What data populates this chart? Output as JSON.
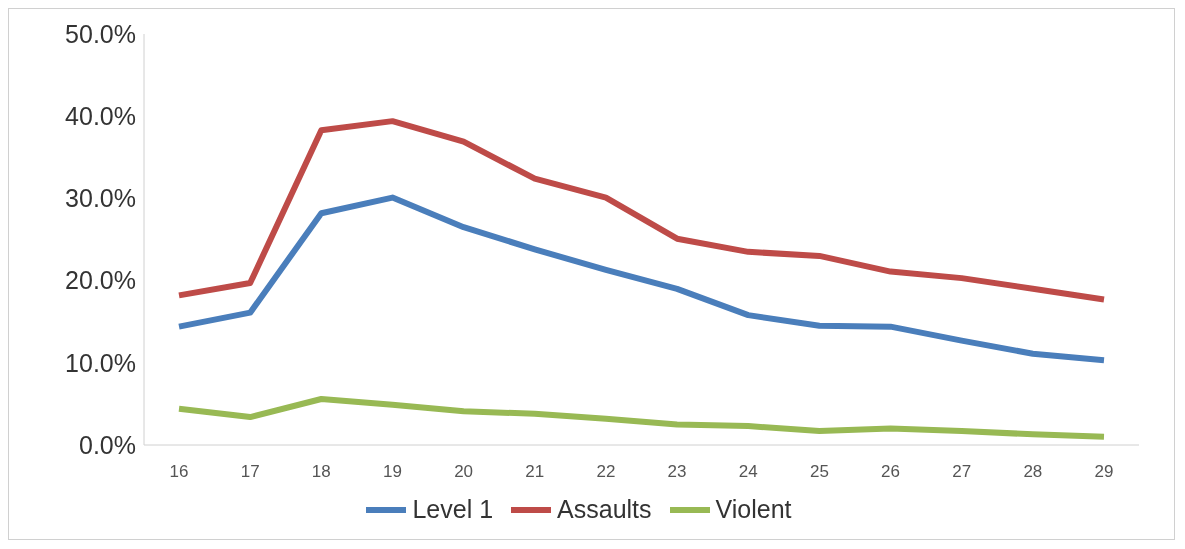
{
  "chart_data": {
    "type": "line",
    "categories": [
      "16",
      "17",
      "18",
      "19",
      "20",
      "21",
      "22",
      "23",
      "24",
      "25",
      "26",
      "27",
      "28",
      "29"
    ],
    "series": [
      {
        "name": "Level 1",
        "color": "#4a7ebb",
        "values": [
          14.4,
          16.1,
          28.2,
          30.1,
          26.5,
          23.8,
          21.3,
          19.0,
          15.8,
          14.5,
          14.4,
          12.7,
          11.1,
          10.3
        ]
      },
      {
        "name": "Assaults",
        "color": "#be4b48",
        "values": [
          18.2,
          19.7,
          38.3,
          39.4,
          36.9,
          32.4,
          30.1,
          25.1,
          23.5,
          23.0,
          21.1,
          20.3,
          19.0,
          17.7
        ]
      },
      {
        "name": "Violent",
        "color": "#98b954",
        "values": [
          4.4,
          3.4,
          5.6,
          4.9,
          4.1,
          3.8,
          3.2,
          2.5,
          2.3,
          1.7,
          2.0,
          1.7,
          1.3,
          1.0
        ]
      }
    ],
    "ylim": [
      0,
      50
    ],
    "yticks": [
      {
        "value": 0,
        "label": "0.0%"
      },
      {
        "value": 10,
        "label": "10.0%"
      },
      {
        "value": 20,
        "label": "20.0%"
      },
      {
        "value": 30,
        "label": "30.0%"
      },
      {
        "value": 40,
        "label": "40.0%"
      },
      {
        "value": 50,
        "label": "50.0%"
      }
    ],
    "grid": false,
    "legend": "bottom",
    "marker": "none",
    "line_style": "solid"
  }
}
